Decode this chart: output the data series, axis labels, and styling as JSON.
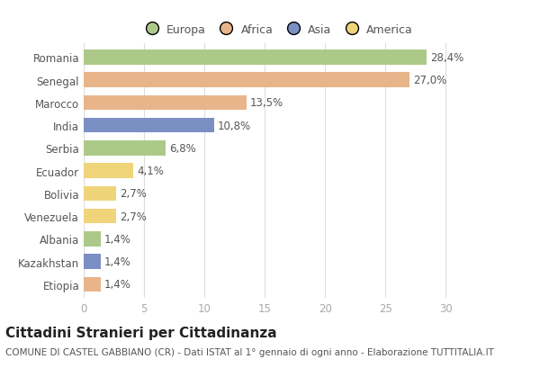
{
  "countries": [
    "Romania",
    "Senegal",
    "Marocco",
    "India",
    "Serbia",
    "Ecuador",
    "Bolivia",
    "Venezuela",
    "Albania",
    "Kazakhstan",
    "Etiopia"
  ],
  "values": [
    28.4,
    27.0,
    13.5,
    10.8,
    6.8,
    4.1,
    2.7,
    2.7,
    1.4,
    1.4,
    1.4
  ],
  "labels": [
    "28,4%",
    "27,0%",
    "13,5%",
    "10,8%",
    "6,8%",
    "4,1%",
    "2,7%",
    "2,7%",
    "1,4%",
    "1,4%",
    "1,4%"
  ],
  "colors": [
    "#adc98a",
    "#e8b48a",
    "#e8b48a",
    "#7b8fc4",
    "#adc98a",
    "#f0d47a",
    "#f0d47a",
    "#f0d47a",
    "#adc98a",
    "#7b8fc4",
    "#e8b48a"
  ],
  "legend_labels": [
    "Europa",
    "Africa",
    "Asia",
    "America"
  ],
  "legend_colors": [
    "#adc98a",
    "#e8b48a",
    "#7b8fc4",
    "#f0d47a"
  ],
  "xlim": [
    0,
    32
  ],
  "xticks": [
    0,
    5,
    10,
    15,
    20,
    25,
    30
  ],
  "title": "Cittadini Stranieri per Cittadinanza",
  "subtitle": "COMUNE DI CASTEL GABBIANO (CR) - Dati ISTAT al 1° gennaio di ogni anno - Elaborazione TUTTITALIA.IT",
  "background_color": "#ffffff",
  "grid_color": "#dddddd",
  "bar_height": 0.65,
  "title_fontsize": 11,
  "subtitle_fontsize": 7.5,
  "label_fontsize": 8.5,
  "tick_fontsize": 8.5,
  "legend_fontsize": 9
}
